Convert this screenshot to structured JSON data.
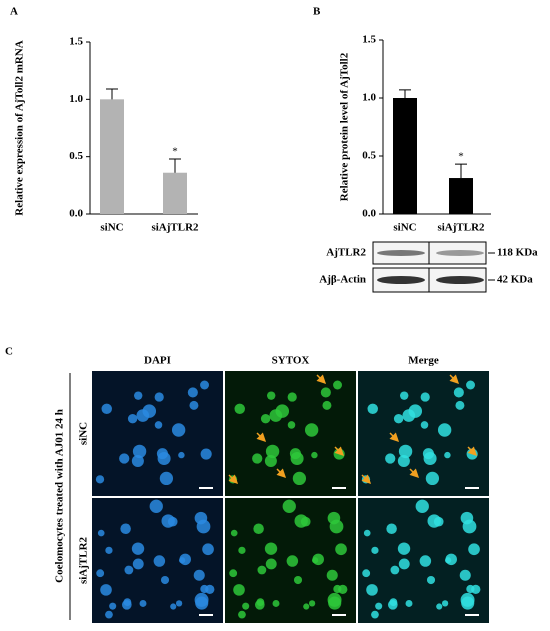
{
  "chart_data": [
    {
      "type": "bar",
      "panel": "A",
      "ylabel": "Relative expression of AjToll2 mRNA",
      "categories": [
        "siNC",
        "siAjTLR2"
      ],
      "values": [
        1.0,
        0.36
      ],
      "errors": [
        0.09,
        0.12
      ],
      "annotations": [
        null,
        "*"
      ],
      "color": "#b3b3b3",
      "ylim": [
        0,
        1.5
      ],
      "yticks": [
        {
          "value": 0,
          "label": "0.0"
        },
        0.5,
        {
          "value": 1,
          "label": "1.0"
        },
        1.5
      ]
    },
    {
      "type": "bar",
      "panel": "B",
      "ylabel": "Relative protein level of AjToll2",
      "categories": [
        "siNC",
        "siAjTLR2"
      ],
      "values": [
        1.0,
        0.31
      ],
      "errors": [
        0.07,
        0.12
      ],
      "annotations": [
        null,
        "*"
      ],
      "color": "#000000",
      "ylim": [
        0,
        1.5
      ],
      "yticks": [
        {
          "value": 0,
          "label": "0.0"
        },
        0.5,
        {
          "value": 1,
          "label": "1.0"
        },
        1.5
      ]
    }
  ],
  "blot": {
    "rows": [
      "AjTLR2",
      "Ajβ-Actin"
    ],
    "sizes": [
      "118 KDa",
      "42 KDa"
    ]
  },
  "microscopy": {
    "panel": "C",
    "columns": [
      "DAPI",
      "SYTOX",
      "Merge"
    ],
    "rows": [
      "siNC",
      "siAjTLR2"
    ],
    "side_label": "Coelomocytes treated with AJ01 24 h"
  }
}
